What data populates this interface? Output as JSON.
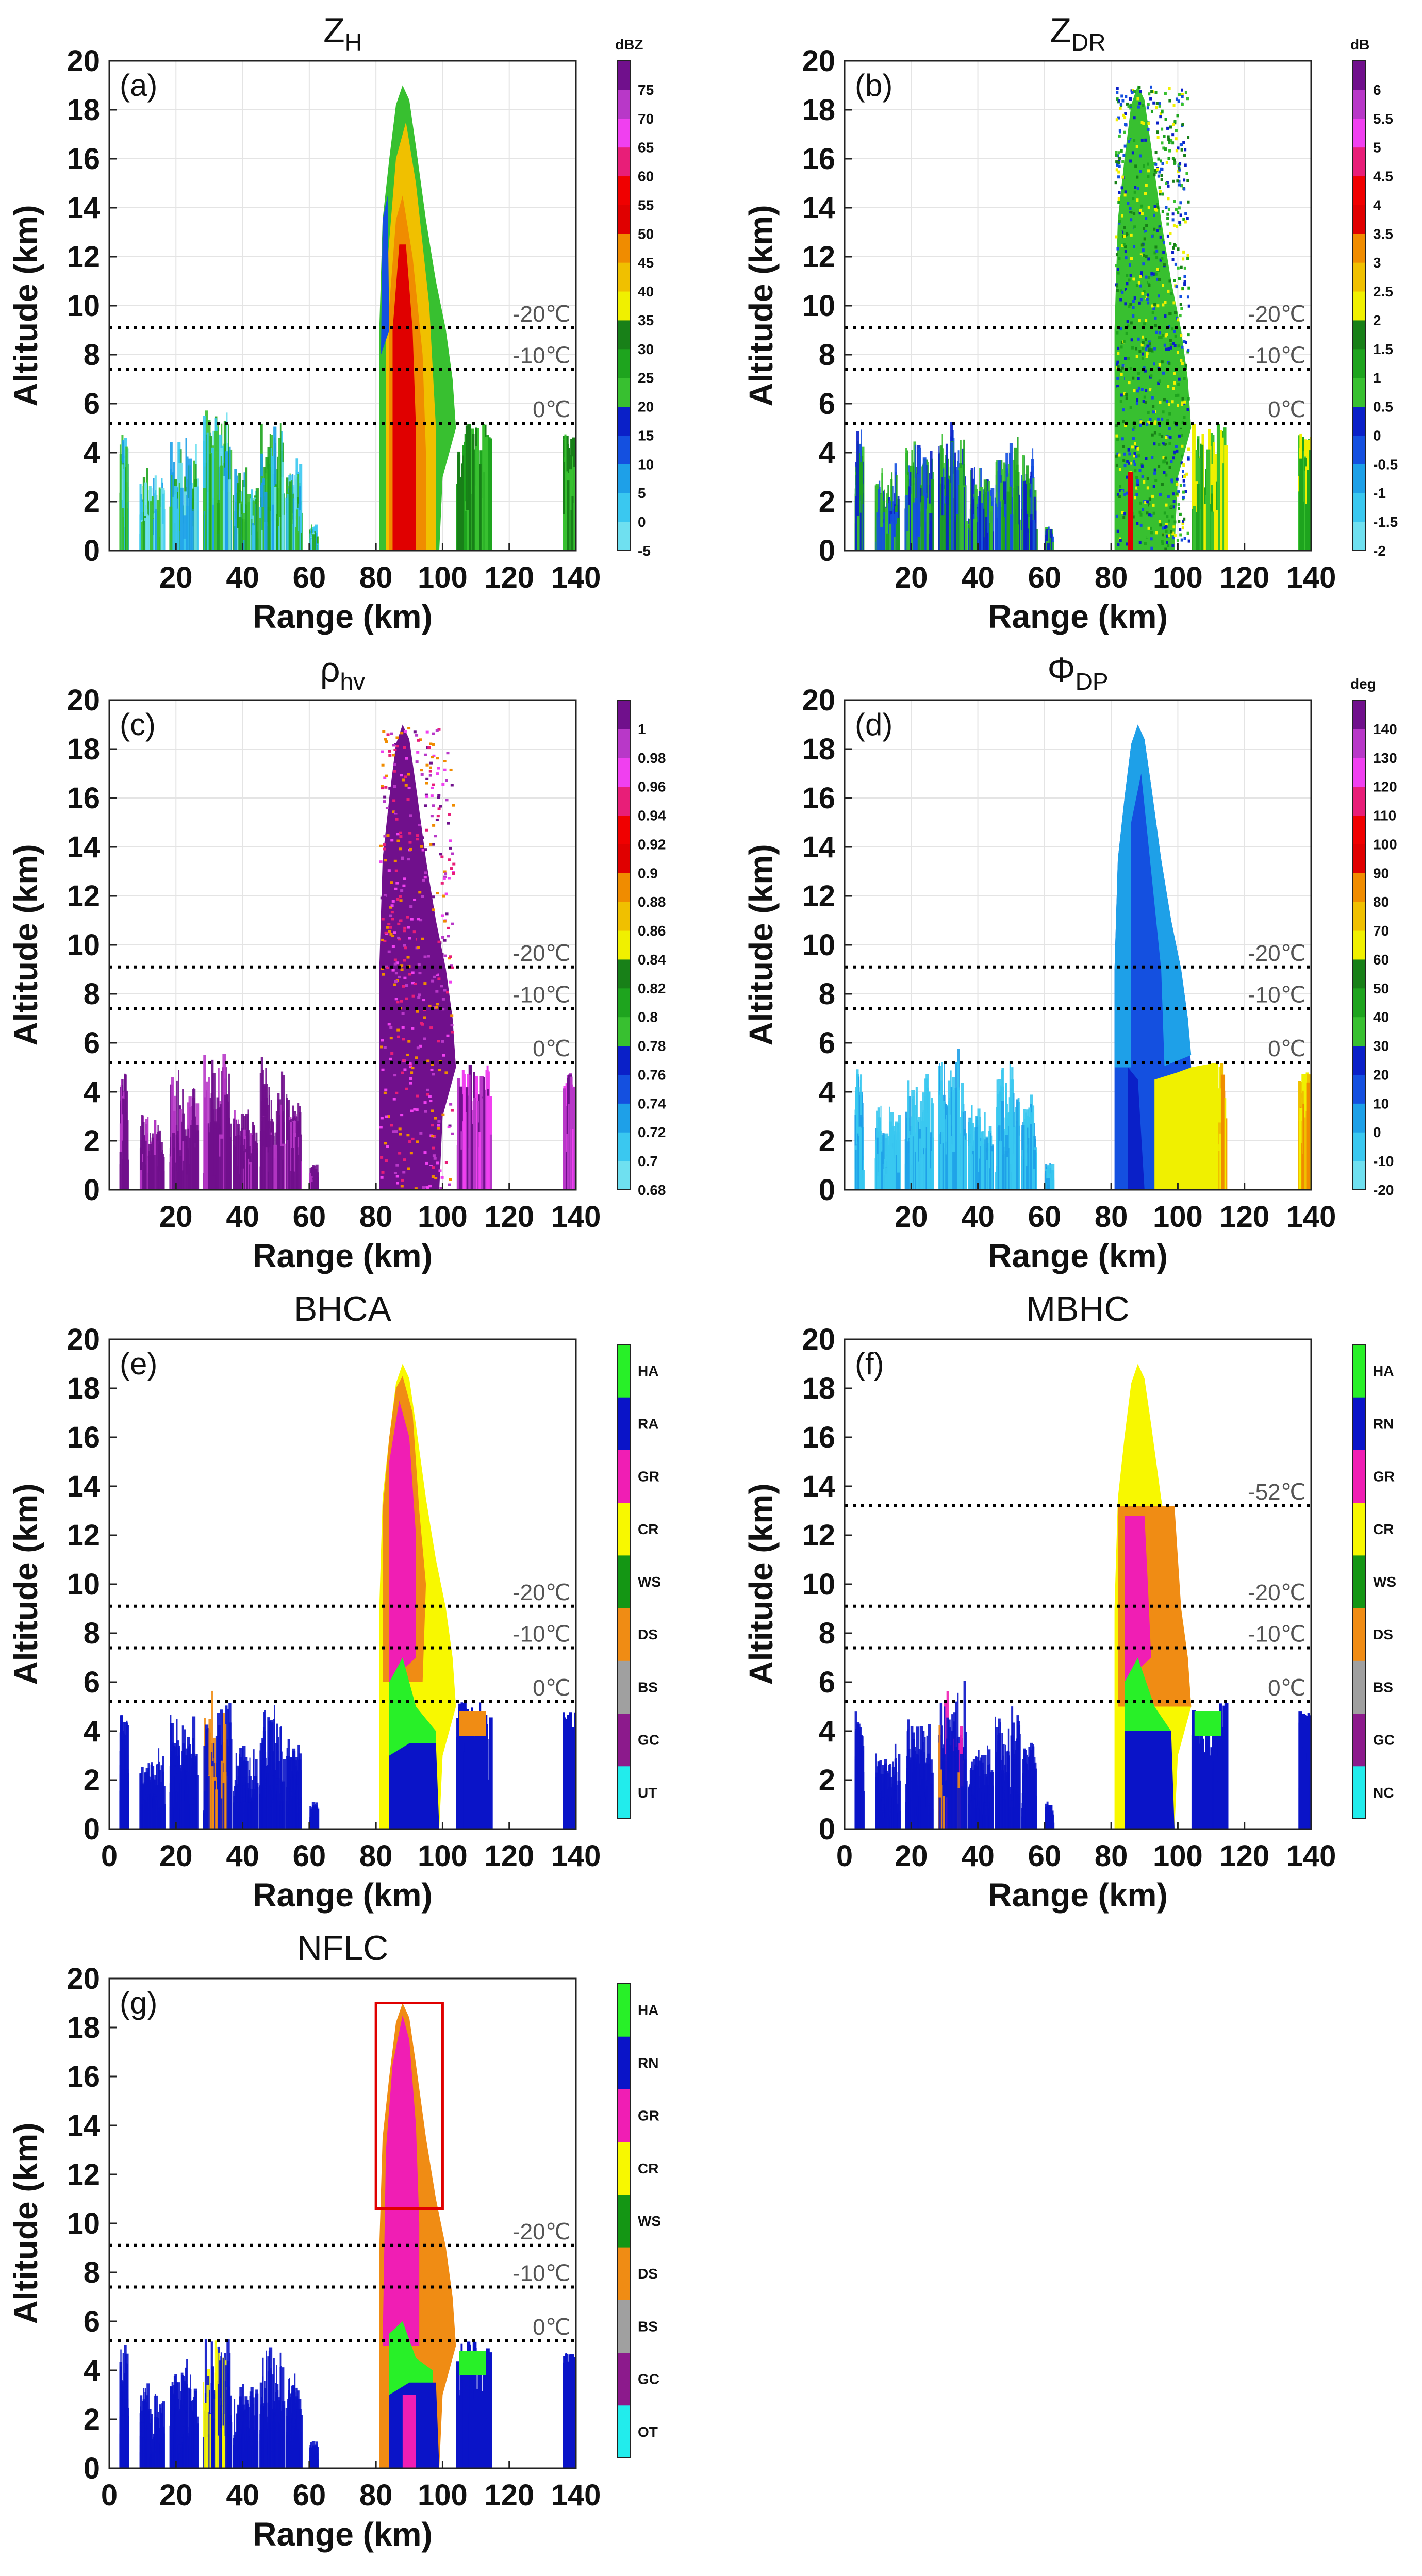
{
  "figure": "Radar vertical cross-sections of polarimetric variables and hydrometeor classification results",
  "chart_data": [
    {
      "panel": "(a)",
      "type": "heatmap",
      "title": "Z",
      "title_sub": "H",
      "xlabel": "Range (km)",
      "ylabel": "Altitude (km)",
      "xlim": [
        0,
        140
      ],
      "ylim": [
        0,
        20
      ],
      "xticks": [
        20,
        40,
        60,
        80,
        100,
        120,
        140
      ],
      "yticks": [
        0,
        2,
        4,
        6,
        8,
        10,
        12,
        14,
        16,
        18,
        20
      ],
      "isotherms": [
        {
          "label": "0℃",
          "altitude": 5.2
        },
        {
          "label": "-10℃",
          "altitude": 7.4
        },
        {
          "label": "-20℃",
          "altitude": 9.1
        }
      ],
      "colorbar": {
        "unit": "dBZ",
        "labels": [
          "-5",
          "0",
          "5",
          "10",
          "15",
          "20",
          "25",
          "30",
          "35",
          "40",
          "45",
          "50",
          "55",
          "60",
          "65",
          "70",
          "75"
        ],
        "colors": [
          "#6fe0f0",
          "#3ac8f0",
          "#1ea0e8",
          "#1450e0",
          "#0a20c8",
          "#38c030",
          "#1ea41e",
          "#188018",
          "#f0f000",
          "#f0c000",
          "#f08c00",
          "#e00000",
          "#f00000",
          "#e81e78",
          "#f040f0",
          "#b838c8",
          "#70108c"
        ]
      }
    },
    {
      "panel": "(b)",
      "type": "heatmap",
      "title": "Z",
      "title_sub": "DR",
      "xlabel": "Range (km)",
      "ylabel": "Altitude (km)",
      "xlim": [
        0,
        140
      ],
      "ylim": [
        0,
        20
      ],
      "xticks": [
        20,
        40,
        60,
        80,
        100,
        120,
        140
      ],
      "yticks": [
        0,
        2,
        4,
        6,
        8,
        10,
        12,
        14,
        16,
        18,
        20
      ],
      "isotherms": [
        {
          "label": "0℃",
          "altitude": 5.2
        },
        {
          "label": "-10℃",
          "altitude": 7.4
        },
        {
          "label": "-20℃",
          "altitude": 9.1
        }
      ],
      "colorbar": {
        "unit": "dB",
        "labels": [
          "-2",
          "-1.5",
          "-1",
          "-0.5",
          "0",
          "0.5",
          "1",
          "1.5",
          "2",
          "2.5",
          "3",
          "3.5",
          "4",
          "4.5",
          "5",
          "5.5",
          "6"
        ],
        "colors": [
          "#6fe0f0",
          "#3ac8f0",
          "#1ea0e8",
          "#1450e0",
          "#0a20c8",
          "#38c030",
          "#1ea41e",
          "#188018",
          "#f0f000",
          "#f0c000",
          "#f08c00",
          "#e00000",
          "#f00000",
          "#e81e78",
          "#f040f0",
          "#b838c8",
          "#70108c"
        ]
      }
    },
    {
      "panel": "(c)",
      "type": "heatmap",
      "title": "ρ",
      "title_sub": "hv",
      "xlabel": "Range (km)",
      "ylabel": "Altitude (km)",
      "xlim": [
        0,
        140
      ],
      "ylim": [
        0,
        20
      ],
      "xticks": [
        20,
        40,
        60,
        80,
        100,
        120,
        140
      ],
      "yticks": [
        0,
        2,
        4,
        6,
        8,
        10,
        12,
        14,
        16,
        18,
        20
      ],
      "isotherms": [
        {
          "label": "0℃",
          "altitude": 5.2
        },
        {
          "label": "-10℃",
          "altitude": 7.4
        },
        {
          "label": "-20℃",
          "altitude": 9.1
        }
      ],
      "colorbar": {
        "unit": "",
        "labels": [
          "0.68",
          "0.7",
          "0.72",
          "0.74",
          "0.76",
          "0.78",
          "0.8",
          "0.82",
          "0.84",
          "0.86",
          "0.88",
          "0.9",
          "0.92",
          "0.94",
          "0.96",
          "0.98",
          "1"
        ],
        "colors": [
          "#6fe0f0",
          "#3ac8f0",
          "#1ea0e8",
          "#1450e0",
          "#0a20c8",
          "#38c030",
          "#1ea41e",
          "#188018",
          "#f0f000",
          "#f0c000",
          "#f08c00",
          "#e00000",
          "#f00000",
          "#e81e78",
          "#f040f0",
          "#b838c8",
          "#70108c"
        ]
      }
    },
    {
      "panel": "(d)",
      "type": "heatmap",
      "title": "Φ",
      "title_sub": "DP",
      "xlabel": "Range (km)",
      "ylabel": "Altitude (km)",
      "xlim": [
        0,
        140
      ],
      "ylim": [
        0,
        20
      ],
      "xticks": [
        20,
        40,
        60,
        80,
        100,
        120,
        140
      ],
      "yticks": [
        0,
        2,
        4,
        6,
        8,
        10,
        12,
        14,
        16,
        18,
        20
      ],
      "isotherms": [
        {
          "label": "0℃",
          "altitude": 5.2
        },
        {
          "label": "-10℃",
          "altitude": 7.4
        },
        {
          "label": "-20℃",
          "altitude": 9.1
        }
      ],
      "colorbar": {
        "unit": "deg",
        "labels": [
          "-20",
          "-10",
          "0",
          "10",
          "20",
          "30",
          "40",
          "50",
          "60",
          "70",
          "80",
          "90",
          "100",
          "110",
          "120",
          "130",
          "140"
        ],
        "colors": [
          "#6fe0f0",
          "#3ac8f0",
          "#1ea0e8",
          "#1450e0",
          "#0a20c8",
          "#38c030",
          "#1ea41e",
          "#188018",
          "#f0f000",
          "#f0c000",
          "#f08c00",
          "#e00000",
          "#f00000",
          "#e81e78",
          "#f040f0",
          "#b838c8",
          "#70108c"
        ]
      }
    },
    {
      "panel": "(e)",
      "type": "heatmap",
      "title": "BHCA",
      "title_sub": "",
      "xlabel": "Range (km)",
      "ylabel": "Altitude (km)",
      "xlim": [
        0,
        140
      ],
      "ylim": [
        0,
        20
      ],
      "xticks": [
        0,
        20,
        40,
        60,
        80,
        100,
        120,
        140
      ],
      "yticks": [
        0,
        2,
        4,
        6,
        8,
        10,
        12,
        14,
        16,
        18,
        20
      ],
      "isotherms": [
        {
          "label": "0℃",
          "altitude": 5.2
        },
        {
          "label": "-10℃",
          "altitude": 7.4
        },
        {
          "label": "-20℃",
          "altitude": 9.1
        }
      ],
      "colorbar": {
        "unit": "",
        "labels": [
          "UT",
          "GC",
          "BS",
          "DS",
          "WS",
          "CR",
          "GR",
          "RA",
          "HA"
        ],
        "colors": [
          "#22ecec",
          "#8c1a8c",
          "#a0a0a0",
          "#f08c14",
          "#149614",
          "#f8f800",
          "#f01eb4",
          "#0a14c8",
          "#28f028"
        ]
      }
    },
    {
      "panel": "(f)",
      "type": "heatmap",
      "title": "MBHC",
      "title_sub": "",
      "xlabel": "Range (km)",
      "ylabel": "Altitude (km)",
      "xlim": [
        0,
        140
      ],
      "ylim": [
        0,
        20
      ],
      "xticks": [
        0,
        20,
        40,
        60,
        80,
        100,
        120,
        140
      ],
      "yticks": [
        0,
        2,
        4,
        6,
        8,
        10,
        12,
        14,
        16,
        18,
        20
      ],
      "isotherms": [
        {
          "label": "0℃",
          "altitude": 5.2
        },
        {
          "label": "-10℃",
          "altitude": 7.4
        },
        {
          "label": "-20℃",
          "altitude": 9.1
        },
        {
          "label": "-52℃",
          "altitude": 13.2
        }
      ],
      "colorbar": {
        "unit": "",
        "labels": [
          "NC",
          "GC",
          "BS",
          "DS",
          "WS",
          "CR",
          "GR",
          "RN",
          "HA"
        ],
        "colors": [
          "#22ecec",
          "#8c1a8c",
          "#a0a0a0",
          "#f08c14",
          "#149614",
          "#f8f800",
          "#f01eb4",
          "#0a14c8",
          "#28f028"
        ]
      }
    },
    {
      "panel": "(g)",
      "type": "heatmap",
      "title": "NFLC",
      "title_sub": "",
      "xlabel": "Range (km)",
      "ylabel": "Altitude (km)",
      "xlim": [
        0,
        140
      ],
      "ylim": [
        0,
        20
      ],
      "xticks": [
        0,
        20,
        40,
        60,
        80,
        100,
        120,
        140
      ],
      "yticks": [
        0,
        2,
        4,
        6,
        8,
        10,
        12,
        14,
        16,
        18,
        20
      ],
      "isotherms": [
        {
          "label": "0℃",
          "altitude": 5.2
        },
        {
          "label": "-10℃",
          "altitude": 7.4
        },
        {
          "label": "-20℃",
          "altitude": 9.1
        }
      ],
      "highlight_box": {
        "x_range": [
          80,
          100
        ],
        "y_range": [
          10.6,
          19
        ]
      },
      "colorbar": {
        "unit": "",
        "labels": [
          "OT",
          "GC",
          "BS",
          "DS",
          "WS",
          "CR",
          "GR",
          "RN",
          "HA"
        ],
        "colors": [
          "#22ecec",
          "#8c1a8c",
          "#a0a0a0",
          "#f08c14",
          "#149614",
          "#f8f800",
          "#f01eb4",
          "#0a14c8",
          "#28f028"
        ]
      }
    }
  ]
}
